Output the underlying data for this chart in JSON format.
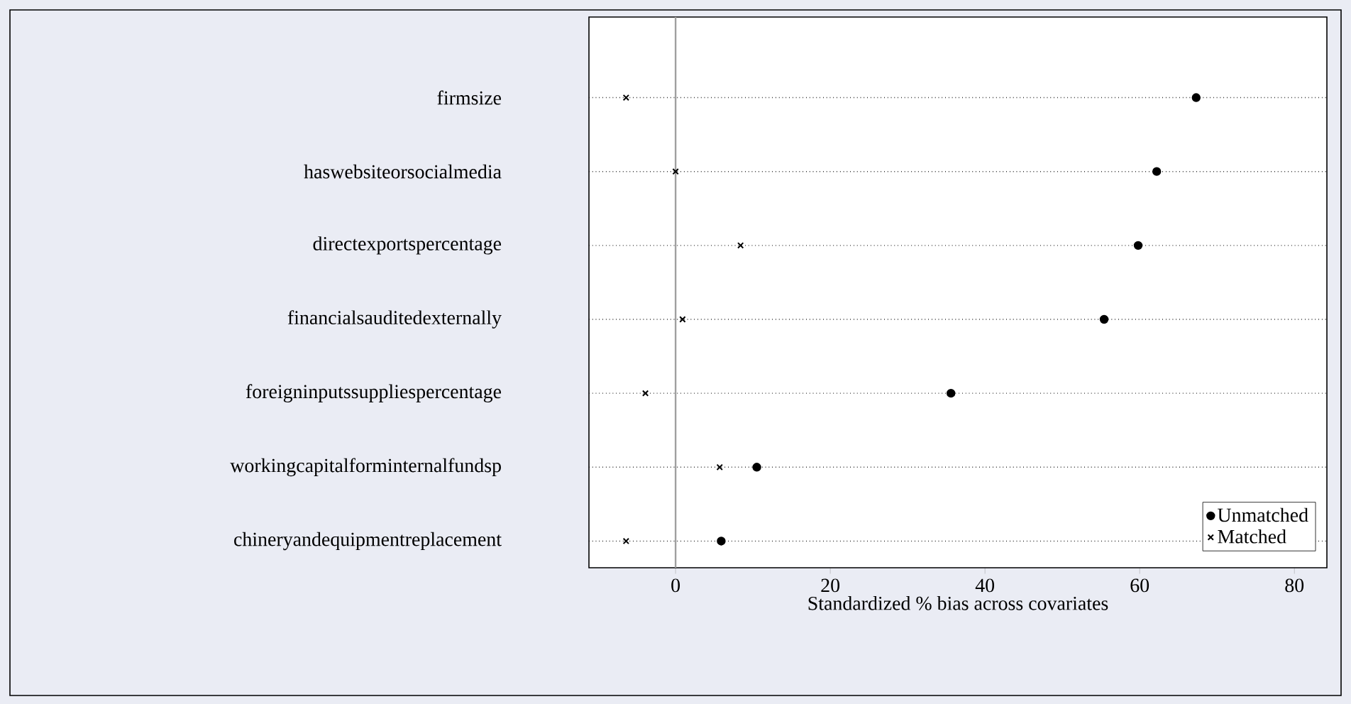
{
  "chart_data": {
    "type": "scatter",
    "orientation": "horizontal",
    "xlabel": "Standardized % bias across covariates",
    "categories": [
      "firmsize",
      "haswebsiteorsocialmedia",
      "directexportspercentage",
      "financialsauditedexternally",
      "foreigninputssuppliespercentage",
      "workingcapitalforminternalfundsp",
      "chineryandequipmentreplacement"
    ],
    "series": [
      {
        "name": "Unmatched",
        "color": "#000000",
        "marker": "circle",
        "values": [
          67.3,
          62.2,
          59.8,
          55.4,
          35.6,
          10.5,
          5.9
        ]
      },
      {
        "name": "Matched",
        "color": "#000000",
        "marker": "cross",
        "values": [
          -6.4,
          0,
          8.4,
          0.9,
          -3.9,
          5.7,
          -6.4
        ]
      }
    ],
    "xlim": [
      -11.2,
      84.2
    ],
    "xticks": [
      0,
      20,
      40,
      60,
      80
    ],
    "grid": "y",
    "legend": "bottom right",
    "ref_lines": [
      {
        "axis": "x",
        "value": 0,
        "color": "#a0a0a0"
      }
    ]
  }
}
